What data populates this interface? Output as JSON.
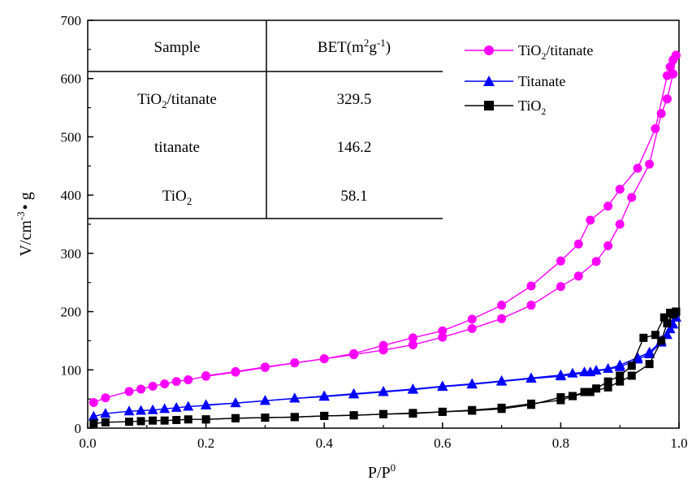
{
  "chart_data": {
    "type": "scatter",
    "xlabel": "P/P",
    "xlabel_sup": "0",
    "ylabel": "V/cm",
    "ylabel_sup": "-3",
    "ylabel_tail": "• g",
    "xlim": [
      0.0,
      1.0
    ],
    "ylim": [
      0,
      700
    ],
    "x_ticks": [
      "0.0",
      "0.2",
      "0.4",
      "0.6",
      "0.8",
      "1.0"
    ],
    "y_ticks": [
      "0",
      "100",
      "200",
      "300",
      "400",
      "500",
      "600",
      "700"
    ],
    "legend_position": "top-right",
    "series": [
      {
        "name": "TiO2/titanate",
        "name_main": "TiO",
        "name_sub": "2",
        "name_tail": "/titanate",
        "color": "#ff00ff",
        "marker": "circle",
        "adsorption": [
          [
            0.01,
            44
          ],
          [
            0.03,
            52
          ],
          [
            0.07,
            63
          ],
          [
            0.09,
            67
          ],
          [
            0.11,
            72
          ],
          [
            0.13,
            76
          ],
          [
            0.15,
            80
          ],
          [
            0.17,
            83
          ],
          [
            0.2,
            89
          ],
          [
            0.25,
            96
          ],
          [
            0.3,
            104
          ],
          [
            0.35,
            112
          ],
          [
            0.4,
            119
          ],
          [
            0.45,
            126
          ],
          [
            0.5,
            134
          ],
          [
            0.55,
            143
          ],
          [
            0.6,
            156
          ],
          [
            0.65,
            171
          ],
          [
            0.7,
            188
          ],
          [
            0.75,
            211
          ],
          [
            0.8,
            243
          ],
          [
            0.83,
            261
          ],
          [
            0.86,
            286
          ],
          [
            0.88,
            313
          ],
          [
            0.9,
            350
          ],
          [
            0.92,
            396
          ],
          [
            0.95,
            453
          ],
          [
            0.97,
            540
          ],
          [
            0.98,
            565
          ],
          [
            0.99,
            608
          ],
          [
            0.995,
            640
          ]
        ],
        "desorption": [
          [
            0.995,
            640
          ],
          [
            0.99,
            632
          ],
          [
            0.985,
            620
          ],
          [
            0.98,
            605
          ],
          [
            0.96,
            514
          ],
          [
            0.93,
            446
          ],
          [
            0.9,
            410
          ],
          [
            0.88,
            381
          ],
          [
            0.85,
            357
          ],
          [
            0.83,
            316
          ],
          [
            0.8,
            287
          ],
          [
            0.75,
            244
          ],
          [
            0.7,
            211
          ],
          [
            0.65,
            187
          ],
          [
            0.6,
            167
          ],
          [
            0.55,
            155
          ],
          [
            0.5,
            142
          ],
          [
            0.45,
            128
          ],
          [
            0.4,
            119
          ],
          [
            0.35,
            112
          ],
          [
            0.3,
            105
          ],
          [
            0.25,
            97
          ],
          [
            0.2,
            90
          ]
        ]
      },
      {
        "name": "Titanate",
        "color": "#0000ff",
        "marker": "triangle",
        "adsorption": [
          [
            0.01,
            20
          ],
          [
            0.03,
            25
          ],
          [
            0.07,
            29
          ],
          [
            0.09,
            30
          ],
          [
            0.11,
            31
          ],
          [
            0.13,
            33
          ],
          [
            0.15,
            35
          ],
          [
            0.17,
            37
          ],
          [
            0.2,
            39
          ],
          [
            0.25,
            43
          ],
          [
            0.3,
            47
          ],
          [
            0.35,
            51
          ],
          [
            0.4,
            54
          ],
          [
            0.45,
            58
          ],
          [
            0.5,
            62
          ],
          [
            0.55,
            66
          ],
          [
            0.6,
            71
          ],
          [
            0.65,
            75
          ],
          [
            0.7,
            80
          ],
          [
            0.75,
            85
          ],
          [
            0.8,
            89
          ],
          [
            0.85,
            96
          ],
          [
            0.9,
            105
          ],
          [
            0.93,
            118
          ],
          [
            0.95,
            127
          ],
          [
            0.97,
            147
          ],
          [
            0.98,
            160
          ],
          [
            0.99,
            178
          ],
          [
            0.995,
            190
          ]
        ],
        "desorption": [
          [
            0.995,
            190
          ],
          [
            0.985,
            170
          ],
          [
            0.97,
            150
          ],
          [
            0.95,
            130
          ],
          [
            0.93,
            121
          ],
          [
            0.9,
            108
          ],
          [
            0.88,
            102
          ],
          [
            0.86,
            99
          ],
          [
            0.84,
            96
          ],
          [
            0.82,
            94
          ],
          [
            0.8,
            91
          ],
          [
            0.75,
            86
          ],
          [
            0.7,
            81
          ],
          [
            0.65,
            76
          ],
          [
            0.6,
            72
          ],
          [
            0.55,
            67
          ],
          [
            0.5,
            63
          ],
          [
            0.45,
            59
          ],
          [
            0.4,
            55
          ],
          [
            0.35,
            51
          ],
          [
            0.3,
            47
          ],
          [
            0.25,
            43
          ],
          [
            0.2,
            40
          ]
        ]
      },
      {
        "name": "TiO2",
        "name_main": "TiO",
        "name_sub": "2",
        "name_tail": "",
        "color": "#000000",
        "marker": "square",
        "adsorption": [
          [
            0.01,
            8
          ],
          [
            0.03,
            10
          ],
          [
            0.07,
            11
          ],
          [
            0.09,
            12
          ],
          [
            0.11,
            13
          ],
          [
            0.13,
            13
          ],
          [
            0.15,
            14
          ],
          [
            0.17,
            15
          ],
          [
            0.2,
            15
          ],
          [
            0.25,
            17
          ],
          [
            0.3,
            18
          ],
          [
            0.35,
            19
          ],
          [
            0.4,
            21
          ],
          [
            0.45,
            22
          ],
          [
            0.5,
            24
          ],
          [
            0.55,
            26
          ],
          [
            0.6,
            28
          ],
          [
            0.65,
            31
          ],
          [
            0.7,
            35
          ],
          [
            0.75,
            42
          ],
          [
            0.8,
            48
          ],
          [
            0.82,
            55
          ],
          [
            0.85,
            62
          ],
          [
            0.88,
            70
          ],
          [
            0.9,
            80
          ],
          [
            0.92,
            90
          ],
          [
            0.95,
            110
          ],
          [
            0.97,
            150
          ],
          [
            0.98,
            180
          ],
          [
            0.99,
            195
          ],
          [
            0.995,
            200
          ]
        ],
        "desorption": [
          [
            0.995,
            200
          ],
          [
            0.985,
            198
          ],
          [
            0.975,
            190
          ],
          [
            0.96,
            160
          ],
          [
            0.94,
            155
          ],
          [
            0.92,
            107
          ],
          [
            0.9,
            90
          ],
          [
            0.88,
            80
          ],
          [
            0.86,
            68
          ],
          [
            0.84,
            62
          ],
          [
            0.82,
            55
          ],
          [
            0.8,
            53
          ],
          [
            0.75,
            40
          ],
          [
            0.7,
            33
          ],
          [
            0.65,
            30
          ],
          [
            0.6,
            28
          ],
          [
            0.55,
            25
          ],
          [
            0.5,
            24
          ],
          [
            0.45,
            22
          ],
          [
            0.4,
            21
          ],
          [
            0.35,
            19
          ],
          [
            0.3,
            18
          ],
          [
            0.25,
            17
          ],
          [
            0.2,
            15
          ]
        ]
      }
    ],
    "inset_table": {
      "headers": [
        "Sample",
        "BET"
      ],
      "unit_main": "(m",
      "unit_sup1": "2",
      "unit_mid": "g",
      "unit_sup2": "-1",
      "unit_end": ")",
      "rows": [
        {
          "sample_main": "TiO",
          "sample_sub": "2",
          "sample_tail": "/titanate",
          "bet": "329.5"
        },
        {
          "sample_main": "titanate",
          "sample_sub": "",
          "sample_tail": "",
          "bet": "146.2"
        },
        {
          "sample_main": "TiO",
          "sample_sub": "2",
          "sample_tail": "",
          "bet": "58.1"
        }
      ]
    }
  }
}
